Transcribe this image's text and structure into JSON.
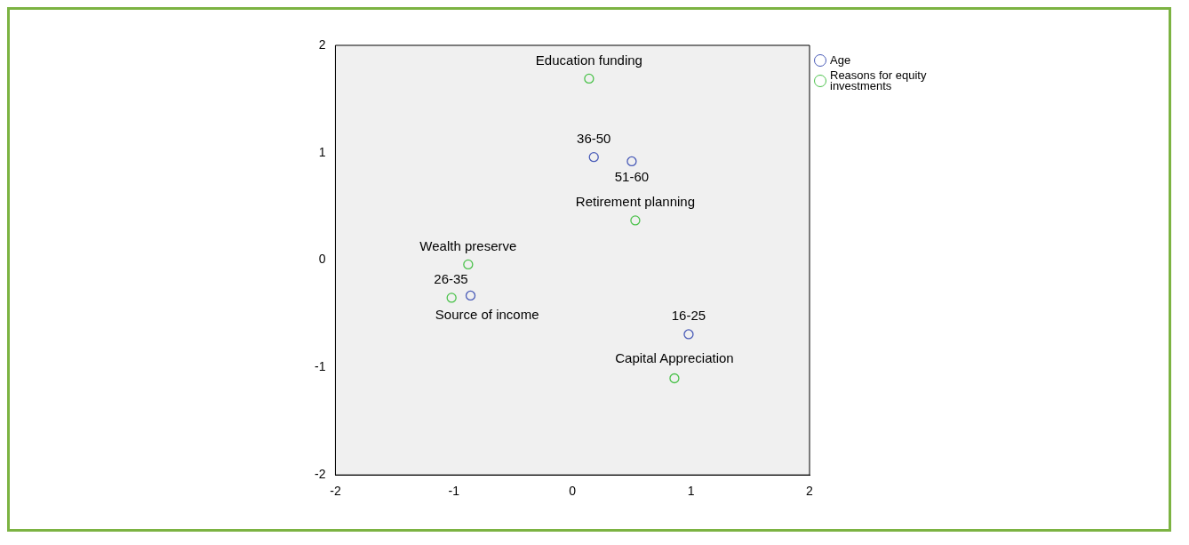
{
  "chart_data": {
    "type": "scatter",
    "xlim": [
      -2,
      2
    ],
    "ylim": [
      -2,
      2
    ],
    "xticks": [
      -2,
      -1,
      0,
      1,
      2
    ],
    "yticks": [
      -2,
      -1,
      0,
      1,
      2
    ],
    "grid": false,
    "legend": "top right",
    "marker": "circle",
    "series": [
      {
        "name": "Age",
        "color": "#4a5cb8",
        "x": [
          0.18,
          0.5,
          -0.86,
          0.98
        ],
        "values": [
          0.96,
          0.92,
          -0.33,
          -0.69
        ]
      },
      {
        "name": "Reasons for equity investments",
        "color": "#4cc24c",
        "x": [
          0.14,
          0.53,
          -0.88,
          -1.02,
          0.86
        ],
        "values": [
          1.69,
          0.37,
          -0.04,
          -0.35,
          -1.1
        ]
      }
    ],
    "annotations": [
      {
        "text": "Education funding",
        "x": 0.14,
        "y": 1.69
      },
      {
        "text": "36-50",
        "x": 0.18,
        "y": 0.96
      },
      {
        "text": "51-60",
        "x": 0.5,
        "y": 0.92
      },
      {
        "text": "Retirement planning",
        "x": 0.53,
        "y": 0.37
      },
      {
        "text": "Wealth preserve",
        "x": -0.88,
        "y": -0.04
      },
      {
        "text": "26-35",
        "x": -0.86,
        "y": -0.33
      },
      {
        "text": "Source of income",
        "x": -1.02,
        "y": -0.35
      },
      {
        "text": "16-25",
        "x": 0.98,
        "y": -0.69
      },
      {
        "text": "Capital Appreciation",
        "x": 0.86,
        "y": -1.1
      }
    ]
  }
}
